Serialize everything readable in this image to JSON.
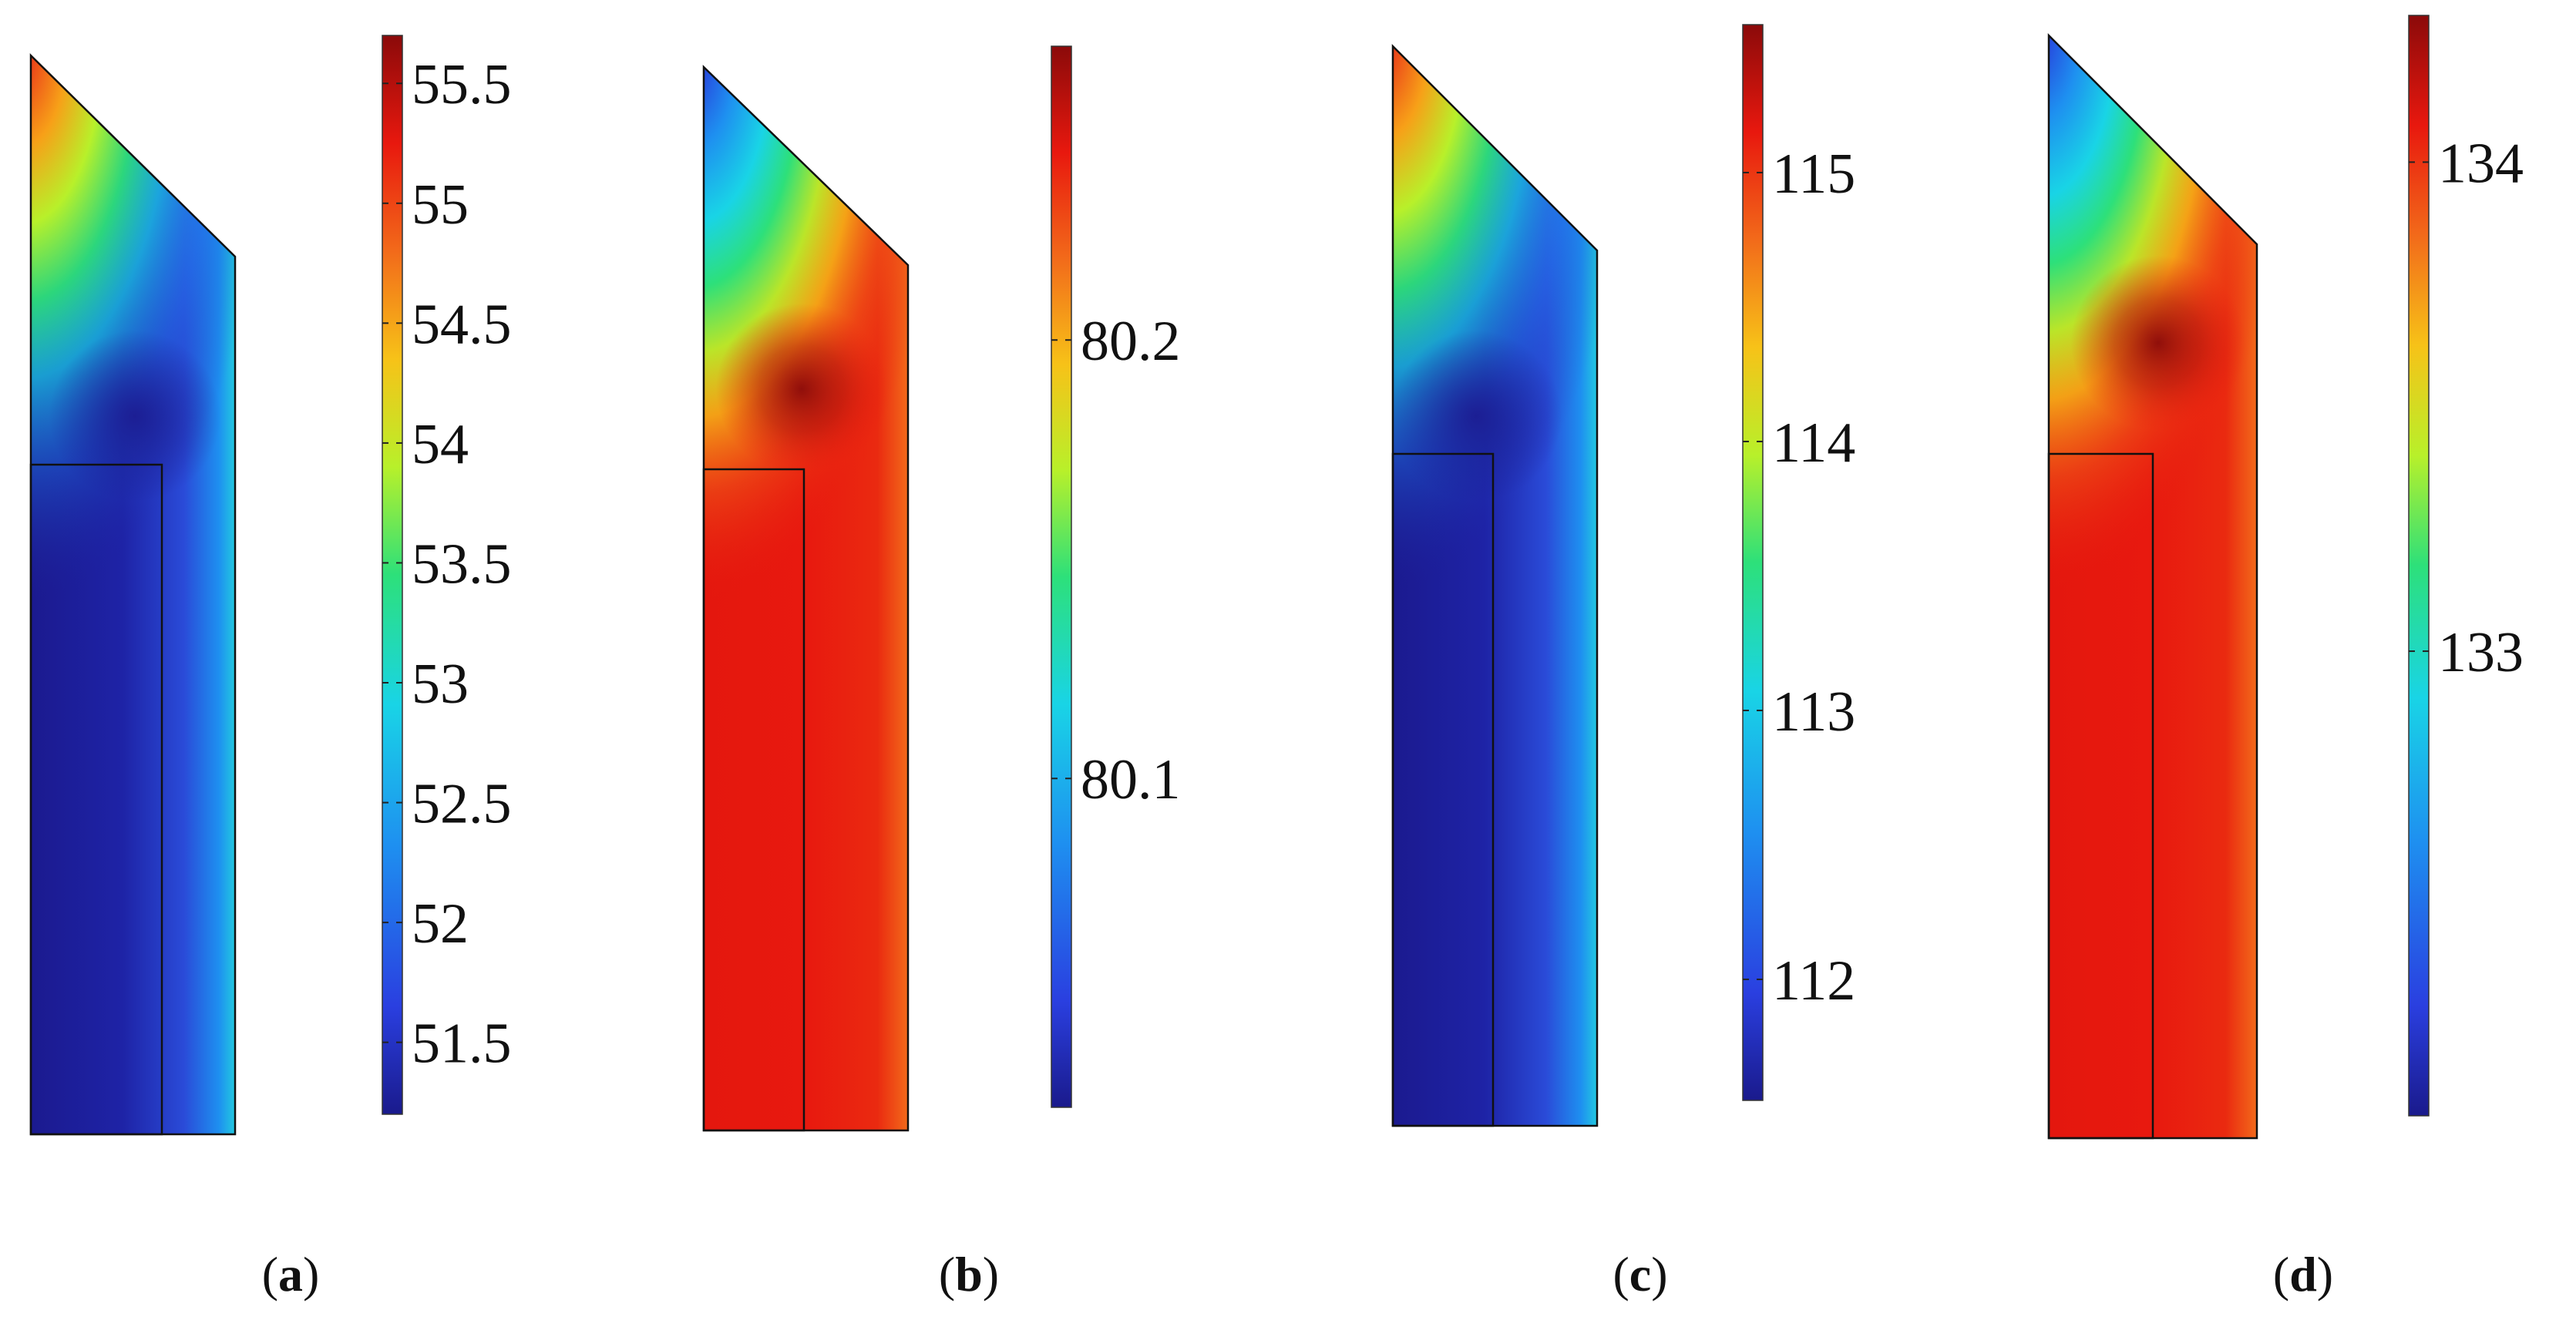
{
  "figure": {
    "panels": [
      {
        "id": "a",
        "caption_letter": "a",
        "theme": "cool-interior",
        "colorbar": {
          "min": 51.2,
          "max": 55.7,
          "ticks": [
            "55.5",
            "55",
            "54.5",
            "54",
            "53.5",
            "53",
            "52.5",
            "52",
            "51.5"
          ]
        }
      },
      {
        "id": "b",
        "caption_letter": "b",
        "theme": "hot-interior",
        "colorbar": {
          "min": 80.025,
          "max": 80.267,
          "ticks": [
            "80.2",
            "80.1"
          ]
        }
      },
      {
        "id": "c",
        "caption_letter": "c",
        "theme": "cool-interior",
        "colorbar": {
          "min": 111.55,
          "max": 115.55,
          "ticks": [
            "115",
            "114",
            "113",
            "112"
          ]
        }
      },
      {
        "id": "d",
        "caption_letter": "d",
        "theme": "hot-interior",
        "colorbar": {
          "min": 132.05,
          "max": 134.3,
          "ticks": [
            "134",
            "133"
          ]
        }
      }
    ],
    "colormap": "rainbow",
    "colormap_stops": [
      "#1a1a8c",
      "#2a3fe0",
      "#1e90f0",
      "#19d4e6",
      "#2de07a",
      "#b8f02a",
      "#f7c218",
      "#f26a1a",
      "#e8180e",
      "#8b0a0a"
    ]
  }
}
